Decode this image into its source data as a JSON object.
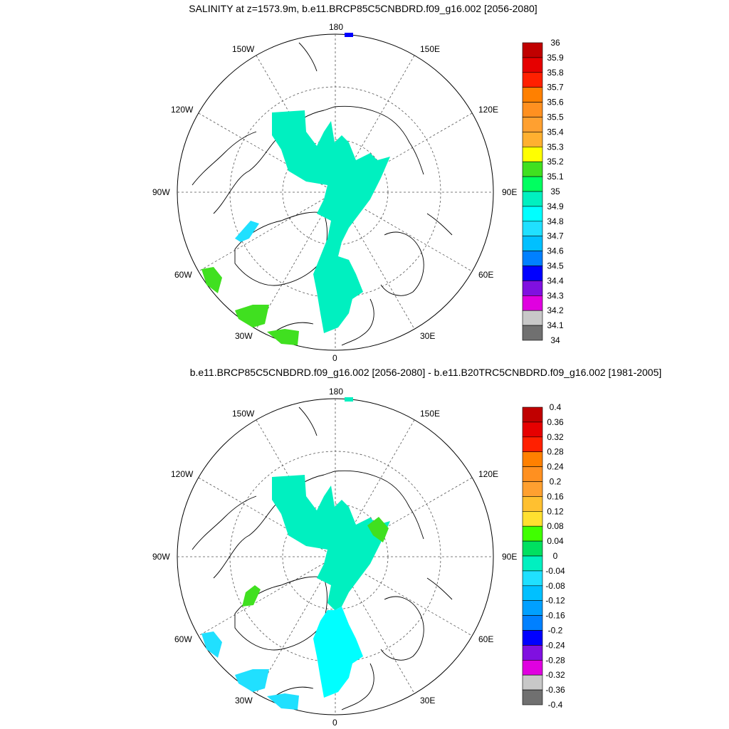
{
  "panels": [
    {
      "title": "SALINITY at z=1573.9m, b.e11.BRCP85C5CNBDRD.f09_g16.002 [2056-2080]",
      "lon_labels": {
        "180": "180",
        "150E": "150E",
        "120E": "120E",
        "90E": "90E",
        "60E": "60E",
        "30E": "30E",
        "0": "0",
        "30W": "30W",
        "60W": "60W",
        "90W": "90W",
        "120W": "120W",
        "150W": "150W"
      },
      "colorbar": {
        "labels": [
          "36",
          "35.9",
          "35.8",
          "35.7",
          "35.6",
          "35.5",
          "35.4",
          "35.3",
          "35.2",
          "35.1",
          "35",
          "34.9",
          "34.8",
          "34.7",
          "34.6",
          "34.5",
          "34.4",
          "34.3",
          "34.2",
          "34.1",
          "34"
        ],
        "colors": [
          "#c00000",
          "#e60000",
          "#ff2000",
          "#ff8000",
          "#ff9020",
          "#ffa030",
          "#ffb030",
          "#ffff00",
          "#40e020",
          "#00ff60",
          "#00f0c0",
          "#00ffff",
          "#20e0ff",
          "#00c0ff",
          "#0080ff",
          "#0000ff",
          "#8010e0",
          "#e000e0",
          "#c8c8c8",
          "#707070"
        ]
      },
      "fields": [
        {
          "name": "main-salinity-field",
          "color": "#00f0c0"
        },
        {
          "name": "baffin-patch",
          "color": "#20e0ff"
        },
        {
          "name": "labrador-patch",
          "color": "#40e020"
        },
        {
          "name": "greenland-patch",
          "color": "#40e020"
        },
        {
          "name": "iceland-patch",
          "color": "#40e020"
        },
        {
          "name": "bering-patch",
          "color": "#0000ff"
        }
      ]
    },
    {
      "title": "b.e11.BRCP85C5CNBDRD.f09_g16.002 [2056-2080] - b.e11.B20TRC5CNBDRD.f09_g16.002 [1981-2005]",
      "lon_labels": {
        "180": "180",
        "150E": "150E",
        "120E": "120E",
        "90E": "90E",
        "60E": "60E",
        "30E": "30E",
        "0": "0",
        "30W": "30W",
        "60W": "60W",
        "90W": "90W",
        "120W": "120W",
        "150W": "150W"
      },
      "colorbar": {
        "labels": [
          "0.4",
          "0.36",
          "0.32",
          "0.28",
          "0.24",
          "0.2",
          "0.16",
          "0.12",
          "0.08",
          "0.04",
          "0",
          "-0.04",
          "-0.08",
          "-0.12",
          "-0.16",
          "-0.2",
          "-0.24",
          "-0.28",
          "-0.32",
          "-0.36",
          "-0.4"
        ],
        "colors": [
          "#c00000",
          "#e60000",
          "#ff2000",
          "#ff8000",
          "#ff9020",
          "#ffa030",
          "#ffc030",
          "#ffe030",
          "#40ff00",
          "#00e060",
          "#00f0c0",
          "#20e0ff",
          "#00c0ff",
          "#00a0ff",
          "#0080ff",
          "#0000ff",
          "#8010e0",
          "#e000e0",
          "#c8c8c8",
          "#707070"
        ]
      },
      "fields": [
        {
          "name": "main-difference-field",
          "color": "#00f0c0"
        },
        {
          "name": "atlantic-difference-field",
          "color": "#00ffff"
        },
        {
          "name": "kara-patch",
          "color": "#40e020"
        },
        {
          "name": "baffin-patch",
          "color": "#40e020"
        },
        {
          "name": "labrador-patch",
          "color": "#20e0ff"
        },
        {
          "name": "greenland-patch",
          "color": "#20e0ff"
        },
        {
          "name": "iceland-patch",
          "color": "#20e0ff"
        },
        {
          "name": "bering-patch",
          "color": "#00f0c0"
        }
      ]
    }
  ]
}
